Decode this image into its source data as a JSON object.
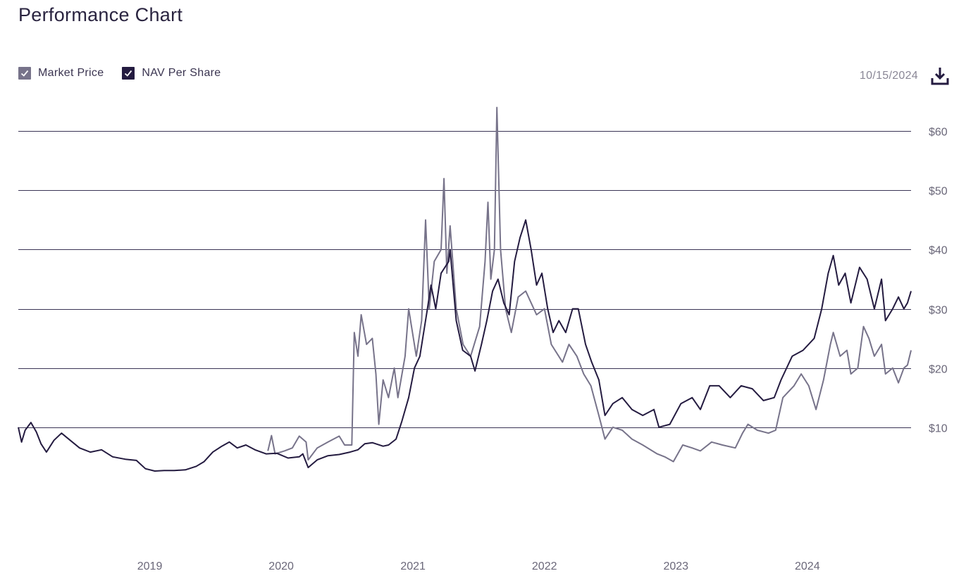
{
  "header": {
    "title": "Performance Chart"
  },
  "legend": {
    "items": [
      {
        "label": "Market Price",
        "checked": true,
        "color": "#77738a"
      },
      {
        "label": "NAV Per Share",
        "checked": true,
        "color": "#241b40"
      }
    ]
  },
  "toolbar": {
    "date": "10/15/2024",
    "download_icon": "download-icon"
  },
  "chart_data": {
    "type": "line",
    "title": "Performance Chart",
    "xlabel": "",
    "ylabel": "",
    "x_axis": {
      "type": "date",
      "min": "2018-01-01",
      "max": "2024-10-15",
      "tick_labels": [
        "2019",
        "2020",
        "2021",
        "2022",
        "2023",
        "2024"
      ]
    },
    "y_axis": {
      "min": -10,
      "max": 68,
      "ticks": [
        10,
        20,
        30,
        40,
        50,
        60
      ],
      "tick_labels": [
        "$10",
        "$20",
        "$30",
        "$40",
        "$50",
        "$60"
      ]
    },
    "grid": "horizontal",
    "legend_position": "top-left",
    "series": [
      {
        "name": "NAV Per Share",
        "color": "#241b40",
        "points": [
          [
            "2018-01-01",
            10.0
          ],
          [
            "2018-01-10",
            7.5
          ],
          [
            "2018-01-20",
            9.5
          ],
          [
            "2018-02-05",
            10.8
          ],
          [
            "2018-02-20",
            9.2
          ],
          [
            "2018-03-05",
            7.2
          ],
          [
            "2018-03-20",
            5.8
          ],
          [
            "2018-04-10",
            7.8
          ],
          [
            "2018-05-01",
            9.0
          ],
          [
            "2018-05-25",
            7.8
          ],
          [
            "2018-06-20",
            6.5
          ],
          [
            "2018-07-20",
            5.8
          ],
          [
            "2018-08-20",
            6.2
          ],
          [
            "2018-09-20",
            5.0
          ],
          [
            "2018-10-25",
            4.6
          ],
          [
            "2018-11-25",
            4.4
          ],
          [
            "2018-12-20",
            3.0
          ],
          [
            "2019-01-15",
            2.6
          ],
          [
            "2019-02-10",
            2.7
          ],
          [
            "2019-03-10",
            2.7
          ],
          [
            "2019-04-10",
            2.8
          ],
          [
            "2019-05-10",
            3.4
          ],
          [
            "2019-06-01",
            4.2
          ],
          [
            "2019-06-25",
            5.8
          ],
          [
            "2019-07-20",
            6.8
          ],
          [
            "2019-08-10",
            7.5
          ],
          [
            "2019-09-01",
            6.5
          ],
          [
            "2019-09-25",
            7.0
          ],
          [
            "2019-10-20",
            6.2
          ],
          [
            "2019-11-20",
            5.5
          ],
          [
            "2019-12-20",
            5.6
          ],
          [
            "2020-01-20",
            4.8
          ],
          [
            "2020-02-20",
            5.0
          ],
          [
            "2020-03-01",
            5.5
          ],
          [
            "2020-03-16",
            3.2
          ],
          [
            "2020-04-10",
            4.5
          ],
          [
            "2020-05-10",
            5.2
          ],
          [
            "2020-06-10",
            5.4
          ],
          [
            "2020-07-10",
            5.8
          ],
          [
            "2020-08-01",
            6.2
          ],
          [
            "2020-08-20",
            7.2
          ],
          [
            "2020-09-10",
            7.4
          ],
          [
            "2020-10-10",
            6.8
          ],
          [
            "2020-10-25",
            7.0
          ],
          [
            "2020-11-15",
            8.0
          ],
          [
            "2020-12-01",
            11.0
          ],
          [
            "2020-12-20",
            15.0
          ],
          [
            "2021-01-05",
            20.0
          ],
          [
            "2021-01-20",
            22.0
          ],
          [
            "2021-02-10",
            30.0
          ],
          [
            "2021-02-20",
            34.0
          ],
          [
            "2021-03-05",
            30.0
          ],
          [
            "2021-03-20",
            36.0
          ],
          [
            "2021-04-10",
            38.0
          ],
          [
            "2021-04-14",
            40.0
          ],
          [
            "2021-05-01",
            28.0
          ],
          [
            "2021-05-19",
            23.0
          ],
          [
            "2021-06-10",
            22.0
          ],
          [
            "2021-06-22",
            19.5
          ],
          [
            "2021-07-10",
            24.0
          ],
          [
            "2021-07-25",
            28.0
          ],
          [
            "2021-08-10",
            33.0
          ],
          [
            "2021-08-25",
            35.0
          ],
          [
            "2021-09-10",
            31.0
          ],
          [
            "2021-09-25",
            29.0
          ],
          [
            "2021-10-10",
            38.0
          ],
          [
            "2021-10-25",
            42.0
          ],
          [
            "2021-11-10",
            45.0
          ],
          [
            "2021-11-25",
            40.0
          ],
          [
            "2021-12-10",
            34.0
          ],
          [
            "2021-12-25",
            36.0
          ],
          [
            "2022-01-10",
            30.0
          ],
          [
            "2022-01-25",
            26.0
          ],
          [
            "2022-02-10",
            28.0
          ],
          [
            "2022-03-01",
            26.0
          ],
          [
            "2022-03-20",
            30.0
          ],
          [
            "2022-04-05",
            30.0
          ],
          [
            "2022-04-25",
            24.0
          ],
          [
            "2022-05-12",
            21.0
          ],
          [
            "2022-06-01",
            18.0
          ],
          [
            "2022-06-18",
            12.0
          ],
          [
            "2022-07-10",
            14.0
          ],
          [
            "2022-08-05",
            15.0
          ],
          [
            "2022-09-01",
            13.0
          ],
          [
            "2022-10-01",
            12.0
          ],
          [
            "2022-11-01",
            13.0
          ],
          [
            "2022-11-15",
            10.0
          ],
          [
            "2022-12-15",
            10.5
          ],
          [
            "2023-01-15",
            14.0
          ],
          [
            "2023-02-15",
            15.0
          ],
          [
            "2023-03-10",
            13.0
          ],
          [
            "2023-04-05",
            17.0
          ],
          [
            "2023-05-01",
            17.0
          ],
          [
            "2023-06-01",
            15.0
          ],
          [
            "2023-07-01",
            17.0
          ],
          [
            "2023-08-01",
            16.5
          ],
          [
            "2023-09-01",
            14.5
          ],
          [
            "2023-10-01",
            15.0
          ],
          [
            "2023-10-20",
            18.0
          ],
          [
            "2023-11-20",
            22.0
          ],
          [
            "2023-12-20",
            23.0
          ],
          [
            "2024-01-20",
            25.0
          ],
          [
            "2024-02-10",
            30.0
          ],
          [
            "2024-02-28",
            36.0
          ],
          [
            "2024-03-13",
            39.0
          ],
          [
            "2024-03-28",
            34.0
          ],
          [
            "2024-04-15",
            36.0
          ],
          [
            "2024-05-01",
            31.0
          ],
          [
            "2024-05-25",
            37.0
          ],
          [
            "2024-06-15",
            35.0
          ],
          [
            "2024-07-05",
            30.0
          ],
          [
            "2024-07-25",
            35.0
          ],
          [
            "2024-08-05",
            28.0
          ],
          [
            "2024-08-25",
            30.0
          ],
          [
            "2024-09-10",
            32.0
          ],
          [
            "2024-09-25",
            30.0
          ],
          [
            "2024-10-05",
            31.0
          ],
          [
            "2024-10-15",
            33.0
          ]
        ]
      },
      {
        "name": "Market Price",
        "color": "#77738a",
        "points": [
          [
            "2019-11-25",
            6.0
          ],
          [
            "2019-12-05",
            8.6
          ],
          [
            "2019-12-15",
            5.5
          ],
          [
            "2020-01-10",
            6.0
          ],
          [
            "2020-02-01",
            6.5
          ],
          [
            "2020-02-20",
            8.5
          ],
          [
            "2020-03-10",
            7.5
          ],
          [
            "2020-03-16",
            4.5
          ],
          [
            "2020-04-10",
            6.5
          ],
          [
            "2020-05-10",
            7.5
          ],
          [
            "2020-06-10",
            8.5
          ],
          [
            "2020-06-25",
            7.0
          ],
          [
            "2020-07-15",
            7.0
          ],
          [
            "2020-07-22",
            26.0
          ],
          [
            "2020-08-01",
            22.0
          ],
          [
            "2020-08-10",
            29.0
          ],
          [
            "2020-08-25",
            24.0
          ],
          [
            "2020-09-10",
            25.0
          ],
          [
            "2020-09-20",
            19.0
          ],
          [
            "2020-09-28",
            10.5
          ],
          [
            "2020-10-10",
            18.0
          ],
          [
            "2020-10-25",
            15.0
          ],
          [
            "2020-11-10",
            20.0
          ],
          [
            "2020-11-20",
            15.0
          ],
          [
            "2020-12-10",
            22.0
          ],
          [
            "2020-12-20",
            30.0
          ],
          [
            "2021-01-10",
            22.0
          ],
          [
            "2021-01-25",
            28.0
          ],
          [
            "2021-02-05",
            45.0
          ],
          [
            "2021-02-15",
            30.0
          ],
          [
            "2021-03-01",
            38.0
          ],
          [
            "2021-03-20",
            40.0
          ],
          [
            "2021-03-28",
            52.0
          ],
          [
            "2021-04-05",
            36.0
          ],
          [
            "2021-04-14",
            44.0
          ],
          [
            "2021-05-01",
            30.0
          ],
          [
            "2021-05-20",
            24.0
          ],
          [
            "2021-06-10",
            22.0
          ],
          [
            "2021-06-25",
            25.0
          ],
          [
            "2021-07-05",
            27.0
          ],
          [
            "2021-07-20",
            38.0
          ],
          [
            "2021-07-28",
            48.0
          ],
          [
            "2021-08-05",
            35.0
          ],
          [
            "2021-08-15",
            40.0
          ],
          [
            "2021-08-22",
            64.0
          ],
          [
            "2021-09-01",
            40.0
          ],
          [
            "2021-09-15",
            30.0
          ],
          [
            "2021-10-01",
            26.0
          ],
          [
            "2021-10-20",
            32.0
          ],
          [
            "2021-11-10",
            33.0
          ],
          [
            "2021-12-10",
            29.0
          ],
          [
            "2022-01-01",
            30.0
          ],
          [
            "2022-01-20",
            24.0
          ],
          [
            "2022-02-20",
            21.0
          ],
          [
            "2022-03-10",
            24.0
          ],
          [
            "2022-04-01",
            22.0
          ],
          [
            "2022-04-20",
            19.0
          ],
          [
            "2022-05-10",
            17.0
          ],
          [
            "2022-06-01",
            12.0
          ],
          [
            "2022-06-18",
            8.0
          ],
          [
            "2022-07-10",
            10.0
          ],
          [
            "2022-08-05",
            9.5
          ],
          [
            "2022-09-01",
            8.0
          ],
          [
            "2022-10-01",
            7.0
          ],
          [
            "2022-11-10",
            5.5
          ],
          [
            "2022-12-01",
            5.0
          ],
          [
            "2022-12-25",
            4.2
          ],
          [
            "2023-01-20",
            7.0
          ],
          [
            "2023-02-15",
            6.5
          ],
          [
            "2023-03-10",
            6.0
          ],
          [
            "2023-04-10",
            7.5
          ],
          [
            "2023-05-10",
            7.0
          ],
          [
            "2023-06-15",
            6.5
          ],
          [
            "2023-07-05",
            9.0
          ],
          [
            "2023-07-20",
            10.5
          ],
          [
            "2023-08-15",
            9.5
          ],
          [
            "2023-09-15",
            9.0
          ],
          [
            "2023-10-05",
            9.5
          ],
          [
            "2023-10-25",
            15.0
          ],
          [
            "2023-11-25",
            17.0
          ],
          [
            "2023-12-15",
            19.0
          ],
          [
            "2024-01-05",
            17.0
          ],
          [
            "2024-01-25",
            13.0
          ],
          [
            "2024-02-15",
            18.0
          ],
          [
            "2024-03-05",
            24.0
          ],
          [
            "2024-03-13",
            26.0
          ],
          [
            "2024-04-01",
            22.0
          ],
          [
            "2024-04-20",
            23.0
          ],
          [
            "2024-05-01",
            19.0
          ],
          [
            "2024-05-20",
            20.0
          ],
          [
            "2024-06-05",
            27.0
          ],
          [
            "2024-06-20",
            25.0
          ],
          [
            "2024-07-05",
            22.0
          ],
          [
            "2024-07-25",
            24.0
          ],
          [
            "2024-08-05",
            19.0
          ],
          [
            "2024-08-25",
            20.0
          ],
          [
            "2024-09-10",
            17.5
          ],
          [
            "2024-09-25",
            20.0
          ],
          [
            "2024-10-05",
            20.5
          ],
          [
            "2024-10-15",
            23.0
          ]
        ]
      }
    ]
  }
}
